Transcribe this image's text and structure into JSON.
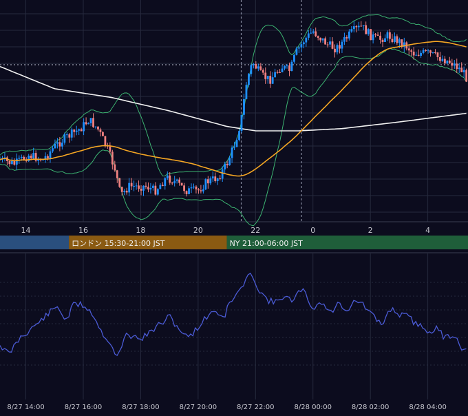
{
  "colors": {
    "background": "#0c0c1e",
    "grid": "#262a3e",
    "bull": "#1e90ff",
    "bear": "#f08080",
    "ma_fast": "#f5a623",
    "ma_slow": "#f0f0f0",
    "bands": "#3cb371",
    "oscillator": "#4b5bd6",
    "session_tokyo": "#2a4f7e",
    "session_london": "#8a5a12",
    "session_ny": "#1f5e3a",
    "text": "#c8c8d0"
  },
  "chart_data": [
    {
      "type": "candlestick",
      "x_tick_labels": [
        "14",
        "16",
        "18",
        "20",
        "22",
        "0",
        "2",
        "4"
      ],
      "x_ticks_hours": [
        14,
        16,
        18,
        20,
        22,
        24,
        26,
        28
      ],
      "x_range_hours": [
        13.1,
        29.4
      ],
      "y_range": [
        100,
        0
      ],
      "overlays": [
        "ma_fast",
        "ma_slow",
        "bollinger_bands"
      ],
      "vertical_markers_hours": [
        21.5,
        23.6
      ],
      "grid": true
    },
    {
      "type": "line",
      "series_name": "oscillator",
      "x_range_hours": [
        13.1,
        29.4
      ],
      "grid": true
    }
  ],
  "sessions": [
    {
      "label": "",
      "start_hour": 13.1,
      "end_hour": 15.5,
      "color": "#2a4f7e"
    },
    {
      "label": "ロンドン 15:30-21:00 JST",
      "start_hour": 15.5,
      "end_hour": 21.0,
      "color": "#8a5a12"
    },
    {
      "label": "NY 21:00-06:00 JST",
      "start_hour": 21.0,
      "end_hour": 29.4,
      "color": "#1f5e3a"
    }
  ],
  "bottom_axis": {
    "tick_labels": [
      "8/27 14:00",
      "8/27 16:00",
      "8/27 18:00",
      "8/27 20:00",
      "8/27 22:00",
      "8/28 00:00",
      "8/28 02:00",
      "8/28 04:00"
    ]
  }
}
